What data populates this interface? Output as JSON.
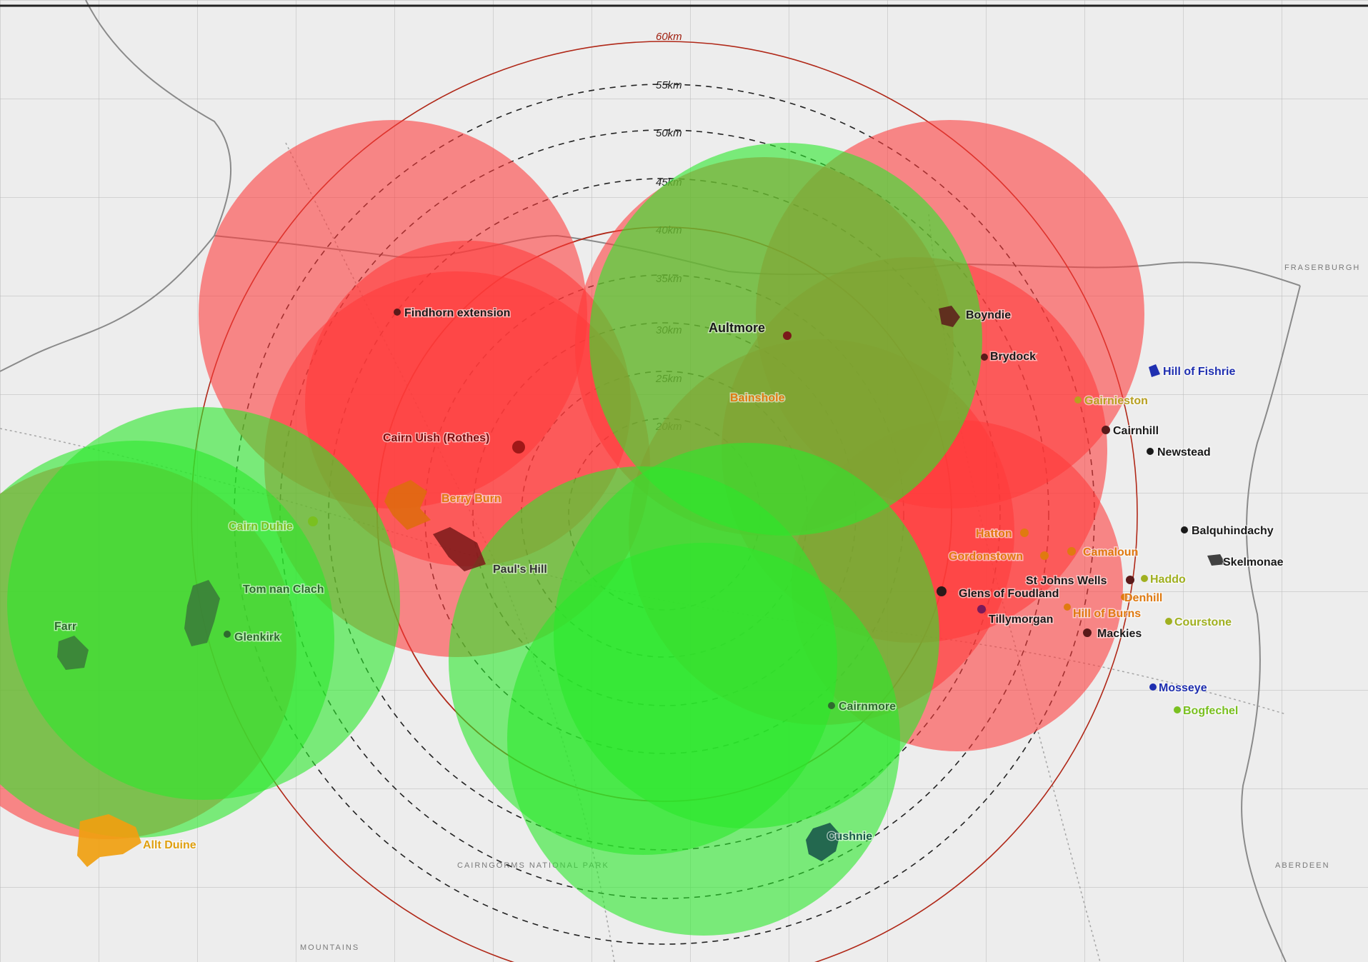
{
  "map": {
    "range_rings_km": [
      "60km",
      "55km",
      "50km",
      "45km",
      "40km",
      "35km",
      "30km",
      "25km",
      "20km"
    ],
    "background_labels": [
      "CAIRNGORMS NATIONAL PARK",
      "MOUNTAINS",
      "FRASERBURGH",
      "ABERDEEN"
    ],
    "zone_colors": {
      "red": "#ff3b3b",
      "green": "#2ce82c"
    },
    "sites": [
      {
        "name": "Findhorn extension",
        "color": "#1a1a1a"
      },
      {
        "name": "Aultmore",
        "color": "#1a1a1a"
      },
      {
        "name": "Boyndie",
        "color": "#1a1a1a"
      },
      {
        "name": "Brydock",
        "color": "#1a1a1a"
      },
      {
        "name": "Hill of Fishrie",
        "color": "#1f2fb0"
      },
      {
        "name": "Gairnieston",
        "color": "#b8a020"
      },
      {
        "name": "Cairnhill",
        "color": "#1a1a1a"
      },
      {
        "name": "Newstead",
        "color": "#1a1a1a"
      },
      {
        "name": "Balquhindachy",
        "color": "#1a1a1a"
      },
      {
        "name": "Skelmonae",
        "color": "#1a1a1a"
      },
      {
        "name": "Cairn Uish (Rothes)",
        "color": "#7a1010"
      },
      {
        "name": "Berry Burn",
        "color": "#e07a10"
      },
      {
        "name": "Paul's Hill",
        "color": "#333333"
      },
      {
        "name": "Cairn Duhie",
        "color": "#7ac020"
      },
      {
        "name": "Tom nan Clach",
        "color": "#2f6a2f"
      },
      {
        "name": "Glenkirk",
        "color": "#2f6a2f"
      },
      {
        "name": "Farr",
        "color": "#2f6a2f"
      },
      {
        "name": "Hatton",
        "color": "#e07a10"
      },
      {
        "name": "Gordonstown",
        "color": "#e07a10"
      },
      {
        "name": "Glens of Foudland",
        "color": "#1a1a1a"
      },
      {
        "name": "Tillymorgan",
        "color": "#1a1a1a"
      },
      {
        "name": "Camaloun",
        "color": "#e07a10"
      },
      {
        "name": "St Johns Wells",
        "color": "#1a1a1a"
      },
      {
        "name": "Haddo",
        "color": "#a0b020"
      },
      {
        "name": "Denhill",
        "color": "#e07a10"
      },
      {
        "name": "Hill of Burns",
        "color": "#e07a10"
      },
      {
        "name": "Courstone",
        "color": "#a0b020"
      },
      {
        "name": "Mackies",
        "color": "#1a1a1a"
      },
      {
        "name": "Mosseye",
        "color": "#1f2fb0"
      },
      {
        "name": "Bogfechel",
        "color": "#7ac020"
      },
      {
        "name": "Cairnmore",
        "color": "#2f6a2f"
      },
      {
        "name": "Cushnie",
        "color": "#1a5a4a"
      },
      {
        "name": "Allt Duine",
        "color": "#e0a010"
      },
      {
        "name": "Bainshole",
        "color": "#e07a10"
      }
    ]
  }
}
